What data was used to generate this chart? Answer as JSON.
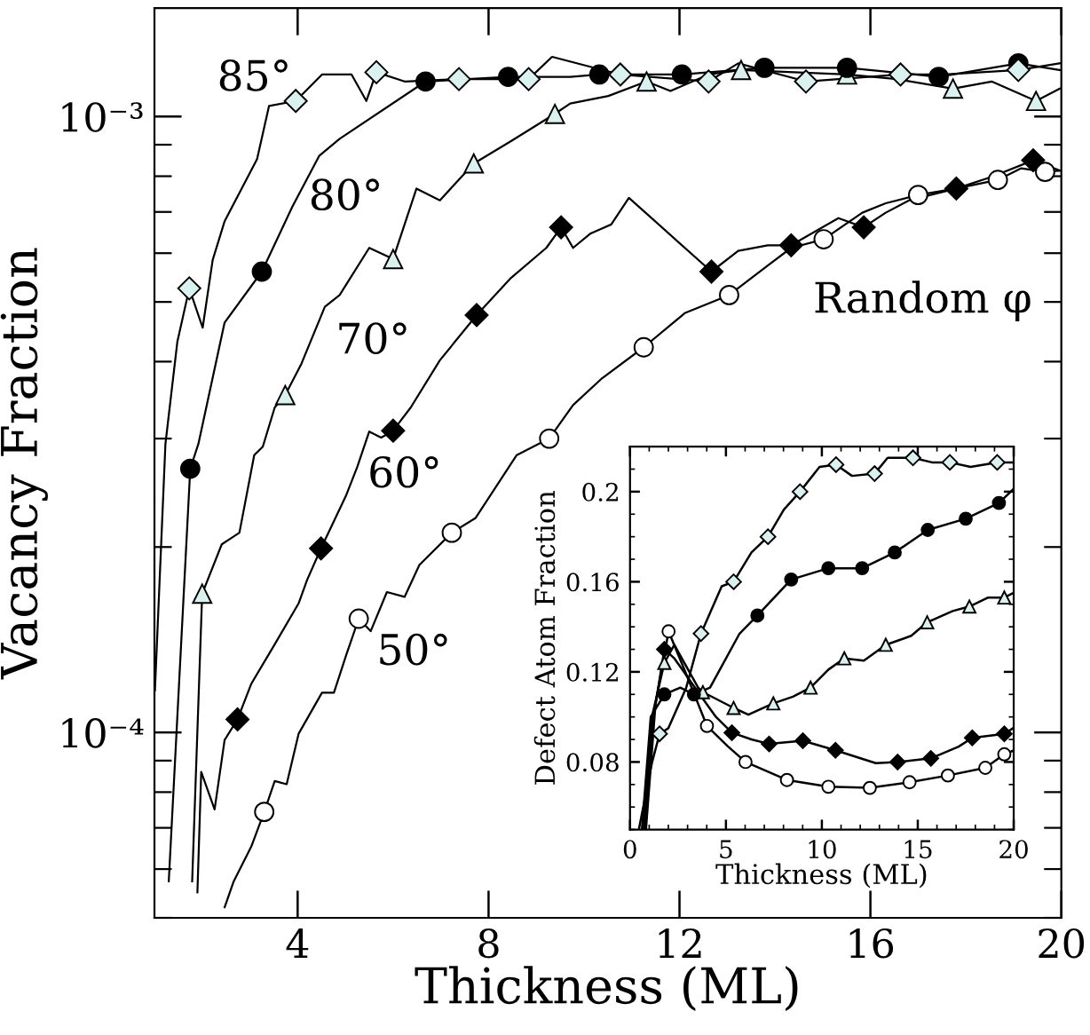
{
  "chart_data": [
    {
      "type": "line",
      "xlabel": "Thickness (ML)",
      "ylabel": "Vacancy Fraction",
      "log": "y",
      "xlim": [
        1,
        20
      ],
      "xticks": [
        4,
        8,
        12,
        16,
        20
      ],
      "ylim": [
        5e-05,
        0.0015
      ],
      "yticks": [
        {
          "value": 0.0001,
          "label": "10⁻⁴"
        },
        {
          "value": 0.001,
          "label": "10⁻³"
        }
      ],
      "series": [
        {
          "color": "#000000",
          "x": [
            1.01,
            1.23,
            1.48,
            1.73,
            2.01,
            2.22,
            2.47,
            3.15,
            3.4,
            3.96,
            4.51,
            5.13,
            5.44,
            5.65,
            6.24,
            7.38,
            8.84,
            9.33,
            10.76,
            12.61,
            13.23,
            14.65,
            16.63,
            17.55,
            19.1,
            19.97
          ],
          "values": [
            0.000117,
            0.000294,
            0.000431,
            0.000526,
            0.000454,
            0.000585,
            0.000676,
            0.000853,
            0.00104,
            0.00106,
            0.00117,
            0.00117,
            0.00106,
            0.00118,
            0.00114,
            0.00115,
            0.00115,
            0.00125,
            0.00117,
            0.00114,
            0.00122,
            0.00114,
            0.00117,
            0.00117,
            0.00119,
            0.00122
          ]
        },
        {
          "type": "scatter",
          "marker": "diamond",
          "color": "#d9f2f0",
          "x": [
            1.73,
            3.96,
            5.65,
            7.38,
            8.84,
            10.76,
            12.61,
            14.65,
            16.63,
            19.1
          ],
          "values": [
            0.000526,
            0.00106,
            0.00118,
            0.00115,
            0.00115,
            0.00117,
            0.00114,
            0.00114,
            0.00117,
            0.00119
          ]
        },
        {
          "color": "#000000",
          "x": [
            1.3,
            1.75,
            1.92,
            2.47,
            3.25,
            3.89,
            4.45,
            4.88,
            6.68,
            8.41,
            9.71,
            10.32,
            12.05,
            13.78,
            15.51,
            17.43,
            19.1,
            19.97
          ],
          "values": [
            5.73e-05,
            0.000268,
            0.000294,
            0.000463,
            0.00056,
            0.000714,
            0.000863,
            0.00092,
            0.00114,
            0.00116,
            0.00116,
            0.00117,
            0.00117,
            0.0012,
            0.0012,
            0.00116,
            0.00122,
            0.00119
          ]
        },
        {
          "type": "scatter",
          "marker": "circle",
          "color": "#000000",
          "x": [
            1.75,
            3.25,
            6.68,
            8.41,
            10.32,
            12.05,
            13.78,
            15.51,
            17.43,
            19.1
          ],
          "values": [
            0.000268,
            0.00056,
            0.00114,
            0.00116,
            0.00117,
            0.00117,
            0.0012,
            0.0012,
            0.00116,
            0.00122
          ]
        },
        {
          "color": "#000000",
          "x": [
            1.79,
            2.0,
            2.41,
            2.78,
            3.09,
            3.27,
            3.52,
            3.74,
            4.08,
            4.57,
            4.88,
            5.5,
            6.0,
            6.49,
            6.98,
            7.69,
            8.47,
            9.39,
            9.71,
            10.51,
            11.31,
            11.81,
            12.61,
            13.29,
            15.51,
            16.56,
            17.73,
            18.54,
            19.47,
            19.97
          ],
          "values": [
            5.73e-05,
            0.000168,
            0.000202,
            0.000211,
            0.000282,
            0.000291,
            0.000337,
            0.000353,
            0.000397,
            0.000491,
            0.000513,
            0.000612,
            0.000587,
            0.000764,
            0.000731,
            0.000839,
            0.000912,
            0.00101,
            0.00105,
            0.00108,
            0.00114,
            0.0011,
            0.00117,
            0.00119,
            0.00117,
            0.00115,
            0.00111,
            0.00114,
            0.00106,
            0.00111
          ]
        },
        {
          "type": "scatter",
          "marker": "triangle",
          "color": "#d9f2f0",
          "x": [
            2.0,
            3.74,
            6.0,
            7.69,
            9.39,
            11.31,
            13.29,
            15.51,
            17.73,
            19.47
          ],
          "values": [
            0.000168,
            0.000353,
            0.000587,
            0.000839,
            0.00101,
            0.00114,
            0.00119,
            0.00117,
            0.00111,
            0.00106
          ]
        },
        {
          "color": "#000000",
          "x": [
            1.9,
            1.98,
            2.26,
            2.47,
            2.74,
            3.03,
            3.52,
            4.02,
            4.2,
            4.49,
            5.01,
            5.25,
            5.5,
            5.75,
            6.0,
            6.37,
            6.98,
            7.75,
            8.47,
            9.21,
            9.52,
            9.77,
            10.14,
            10.57,
            10.94,
            12.67,
            13.23,
            13.85,
            14.34,
            15.33,
            15.86,
            16.32,
            16.81,
            17.8,
            18.54,
            19.41,
            19.97
          ],
          "values": [
            5.5e-05,
            8.63e-05,
            7.5e-05,
            9.72e-05,
            0.000105,
            0.00012,
            0.000139,
            0.000162,
            0.000177,
            0.000199,
            0.000242,
            0.00027,
            0.000308,
            0.000301,
            0.000309,
            0.000337,
            0.000402,
            0.000476,
            0.000547,
            0.000612,
            0.000661,
            0.000612,
            0.000646,
            0.000668,
            0.000738,
            0.00056,
            0.000605,
            0.000618,
            0.000618,
            0.000684,
            0.000661,
            0.000698,
            0.000731,
            0.000764,
            0.000798,
            0.000849,
            0.000817
          ]
        },
        {
          "type": "scatter",
          "marker": "diamond",
          "color": "#000000",
          "x": [
            2.74,
            4.49,
            6.0,
            7.75,
            9.52,
            12.67,
            14.34,
            15.86,
            17.8,
            19.41
          ],
          "values": [
            0.000105,
            0.000199,
            0.000309,
            0.000476,
            0.000661,
            0.00056,
            0.000618,
            0.000661,
            0.000764,
            0.000849
          ]
        },
        {
          "color": "#000000",
          "x": [
            2.47,
            2.66,
            3.03,
            3.3,
            3.52,
            3.77,
            4.02,
            4.51,
            4.76,
            5.01,
            5.28,
            5.53,
            5.87,
            6.24,
            6.55,
            7.23,
            7.73,
            8.59,
            9.27,
            9.77,
            10.38,
            11.25,
            12.12,
            13.04,
            13.85,
            14.34,
            15.02,
            15.83,
            16.32,
            17.0,
            17.8,
            18.67,
            19.16,
            19.66,
            19.97
          ],
          "values": [
            5.2e-05,
            5.73e-05,
            6.53e-05,
            7.43e-05,
            8.34e-05,
            8.24e-05,
            9.95e-05,
            0.000116,
            0.000116,
            0.000133,
            0.000153,
            0.000146,
            0.000169,
            0.000166,
            0.000187,
            0.000211,
            0.000223,
            0.000282,
            0.0003,
            0.00034,
            0.000376,
            0.000422,
            0.00048,
            0.000513,
            0.000573,
            0.000612,
            0.000632,
            0.000698,
            0.000723,
            0.000746,
            0.000764,
            0.000789,
            0.000824,
            0.000813,
            0.000817
          ]
        },
        {
          "type": "scatter",
          "marker": "circle",
          "color": "#ffffff",
          "x": [
            3.3,
            5.28,
            7.23,
            9.27,
            11.25,
            13.04,
            15.02,
            17.0,
            18.67,
            19.66
          ],
          "values": [
            7.43e-05,
            0.000153,
            0.000211,
            0.0003,
            0.000422,
            0.000513,
            0.000632,
            0.000746,
            0.000789,
            0.000813
          ]
        }
      ],
      "annotations": [
        "85°",
        "80°",
        "70°",
        "60°",
        "50°",
        "Random φ"
      ]
    },
    {
      "type": "line",
      "xlabel": "Thickness (ML)",
      "ylabel": "Defect Atom Fraction",
      "xlim": [
        0,
        20
      ],
      "xticks": [
        0,
        5,
        10,
        15,
        20
      ],
      "ylim": [
        0.05,
        0.22
      ],
      "yticks": [
        0.08,
        0.12,
        0.16,
        {
          "value": 0.2,
          "label": "0.2"
        }
      ],
      "series": [
        {
          "color": "#000000",
          "x": [
            0.46,
            1.14,
            1.54,
            2.0,
            2.93,
            3.7,
            4.78,
            5.4,
            6.33,
            7.19,
            8.02,
            8.86,
            9.88,
            10.74,
            11.57,
            12.75,
            13.43,
            14.75,
            15.74,
            16.67,
            17.75,
            19.14,
            19.97
          ],
          "values": [
            0.05,
            0.0795,
            0.0925,
            0.095,
            0.113,
            0.137,
            0.158,
            0.16,
            0.173,
            0.18,
            0.192,
            0.2,
            0.211,
            0.212,
            0.207,
            0.208,
            0.215,
            0.215,
            0.213,
            0.213,
            0.211,
            0.213,
            0.213
          ]
        },
        {
          "type": "scatter",
          "marker": "diamond",
          "color": "#d9f2f0",
          "x": [
            1.54,
            3.7,
            5.4,
            7.19,
            8.86,
            10.74,
            12.75,
            14.75,
            16.67,
            19.14
          ],
          "values": [
            0.0925,
            0.137,
            0.16,
            0.18,
            0.2,
            0.212,
            0.208,
            0.215,
            0.213,
            0.213
          ]
        },
        {
          "color": "#000000",
          "x": [
            0.62,
            1.08,
            1.79,
            2.62,
            3.33,
            4.17,
            5.71,
            6.64,
            8.4,
            10.34,
            12.1,
            13.8,
            15.52,
            17.5,
            19.23,
            19.97
          ],
          "values": [
            0.05,
            0.1,
            0.11,
            0.113,
            0.11,
            0.113,
            0.137,
            0.145,
            0.161,
            0.166,
            0.166,
            0.173,
            0.183,
            0.188,
            0.195,
            0.201
          ]
        },
        {
          "type": "scatter",
          "marker": "circle",
          "color": "#000000",
          "x": [
            1.79,
            3.33,
            6.64,
            8.4,
            10.34,
            12.1,
            13.8,
            15.52,
            17.5,
            19.23
          ],
          "values": [
            0.11,
            0.11,
            0.145,
            0.161,
            0.166,
            0.166,
            0.173,
            0.183,
            0.188,
            0.195
          ]
        },
        {
          "color": "#000000",
          "x": [
            0.71,
            1.14,
            1.79,
            2.31,
            3.55,
            3.8,
            5.4,
            6.17,
            7.47,
            8.49,
            9.41,
            10.34,
            11.17,
            12.19,
            13.33,
            14.66,
            15.49,
            16.82,
            17.69,
            18.67,
            19.51,
            19.97
          ],
          "values": [
            0.05,
            0.1,
            0.124,
            0.132,
            0.113,
            0.111,
            0.104,
            0.101,
            0.106,
            0.109,
            0.113,
            0.121,
            0.126,
            0.125,
            0.132,
            0.136,
            0.142,
            0.147,
            0.149,
            0.153,
            0.153,
            0.155
          ]
        },
        {
          "type": "scatter",
          "marker": "triangle",
          "color": "#d9f2f0",
          "x": [
            1.79,
            3.8,
            5.4,
            7.47,
            9.41,
            11.17,
            13.33,
            15.49,
            17.69,
            19.51
          ],
          "values": [
            0.124,
            0.111,
            0.104,
            0.106,
            0.113,
            0.126,
            0.132,
            0.142,
            0.149,
            0.153
          ]
        },
        {
          "color": "#000000",
          "x": [
            0.77,
            1.23,
            1.79,
            2.31,
            3.55,
            4.48,
            5.31,
            6.33,
            7.25,
            9.01,
            10.71,
            12.81,
            13.95,
            15.68,
            17.13,
            17.84,
            19.51,
            19.97
          ],
          "values": [
            0.05,
            0.1,
            0.13,
            0.126,
            0.111,
            0.1,
            0.093,
            0.09,
            0.088,
            0.0894,
            0.0852,
            0.0795,
            0.08,
            0.0816,
            0.0868,
            0.0907,
            0.0925,
            0.095
          ]
        },
        {
          "type": "scatter",
          "marker": "diamond",
          "color": "#000000",
          "x": [
            1.79,
            5.31,
            7.25,
            9.01,
            10.71,
            13.95,
            15.68,
            17.84,
            19.51
          ],
          "values": [
            0.13,
            0.093,
            0.088,
            0.0894,
            0.0852,
            0.08,
            0.0816,
            0.0907,
            0.0925
          ]
        },
        {
          "color": "#000000",
          "x": [
            0.83,
            1.33,
            2.01,
            2.93,
            4.01,
            5.09,
            6.02,
            8.18,
            10.34,
            12.5,
            14.57,
            16.57,
            18.52,
            19.51,
            19.97
          ],
          "values": [
            0.05,
            0.106,
            0.138,
            0.119,
            0.096,
            0.087,
            0.08,
            0.072,
            0.069,
            0.0685,
            0.071,
            0.074,
            0.0774,
            0.0834,
            0.085
          ]
        },
        {
          "type": "scatter",
          "marker": "circle",
          "color": "#ffffff",
          "x": [
            2.01,
            4.01,
            6.02,
            8.18,
            10.34,
            12.5,
            14.57,
            16.57,
            18.52,
            19.51
          ],
          "values": [
            0.138,
            0.096,
            0.08,
            0.072,
            0.069,
            0.0685,
            0.071,
            0.074,
            0.0774,
            0.0834
          ]
        }
      ]
    }
  ]
}
